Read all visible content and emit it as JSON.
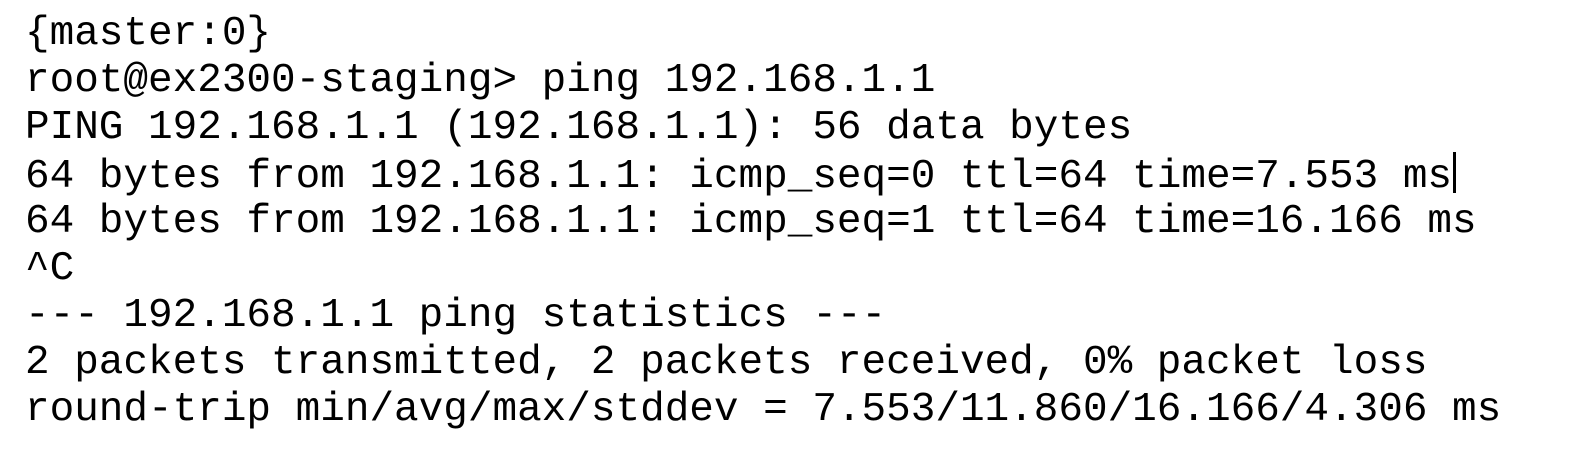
{
  "app": {
    "type": "terminal-session",
    "colors": {
      "background": "#ffffff",
      "text": "#000000",
      "cursor": "#000000"
    }
  },
  "terminal": {
    "lines": [
      "{master:0}",
      "root@ex2300-staging> ping 192.168.1.1",
      "PING 192.168.1.1 (192.168.1.1): 56 data bytes",
      "64 bytes from 192.168.1.1: icmp_seq=0 ttl=64 time=7.553 ms",
      "64 bytes from 192.168.1.1: icmp_seq=1 ttl=64 time=16.166 ms",
      "^C",
      "--- 192.168.1.1 ping statistics ---",
      "2 packets transmitted, 2 packets received, 0% packet loss",
      "round-trip min/avg/max/stddev = 7.553/11.860/16.166/4.306 ms"
    ],
    "cursor": {
      "visible": true,
      "line_index": 3
    }
  }
}
